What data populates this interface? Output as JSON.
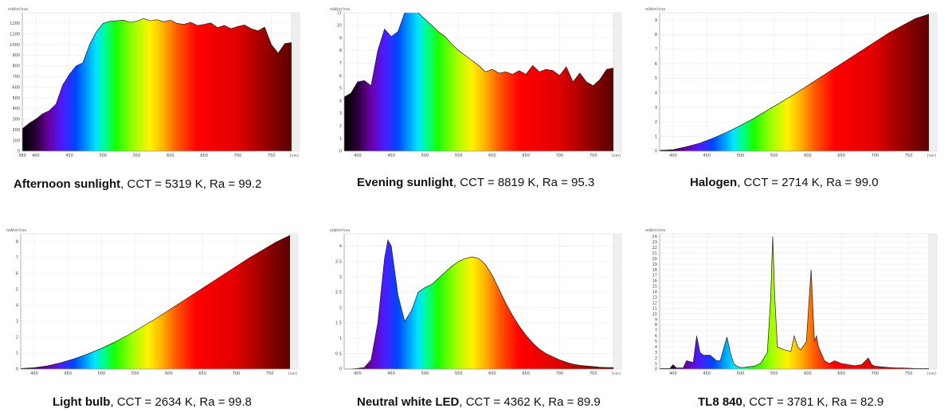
{
  "panels": [
    {
      "name": "Afternoon sunlight",
      "cct": "CCT = 5319 K",
      "ra": "Ra = 99.2",
      "unit": "mW/m²/nm",
      "x_unit": "[nm]",
      "chart_data": {
        "type": "area",
        "xlim": [
          380,
          780
        ],
        "ylim": [
          0,
          1300
        ],
        "xlabel": "[nm]",
        "x_ticks": [
          380,
          400,
          450,
          500,
          550,
          600,
          650,
          700,
          750
        ],
        "y_ticks": [
          0,
          100,
          200,
          300,
          400,
          500,
          600,
          700,
          800,
          900,
          1000,
          1100,
          1200
        ],
        "x": [
          380,
          390,
          400,
          410,
          420,
          430,
          440,
          450,
          460,
          470,
          480,
          490,
          500,
          510,
          520,
          530,
          540,
          550,
          560,
          570,
          580,
          590,
          600,
          610,
          620,
          630,
          640,
          650,
          660,
          670,
          680,
          690,
          700,
          710,
          720,
          730,
          740,
          750,
          760,
          770,
          780
        ],
        "y": [
          210,
          260,
          300,
          350,
          380,
          440,
          620,
          720,
          800,
          830,
          1000,
          1120,
          1200,
          1220,
          1225,
          1230,
          1210,
          1220,
          1245,
          1225,
          1235,
          1215,
          1230,
          1200,
          1190,
          1210,
          1180,
          1190,
          1205,
          1160,
          1180,
          1150,
          1170,
          1185,
          1150,
          1130,
          1165,
          1000,
          920,
          1010,
          1020
        ]
      }
    },
    {
      "name": "Evening sunlight",
      "cct": "CCT = 8819 K",
      "ra": "Ra = 95.3",
      "unit": "mW/m²/nm",
      "x_unit": "[nm]",
      "chart_data": {
        "type": "area",
        "xlim": [
          380,
          780
        ],
        "ylim": [
          0,
          11
        ],
        "xlabel": "[nm]",
        "x_ticks": [
          400,
          450,
          500,
          550,
          600,
          650,
          700,
          750
        ],
        "y_ticks": [
          0,
          1,
          2,
          3,
          4,
          5,
          6,
          7,
          8,
          9,
          10,
          11
        ],
        "x": [
          380,
          390,
          400,
          410,
          420,
          430,
          440,
          450,
          460,
          470,
          480,
          490,
          500,
          510,
          520,
          530,
          540,
          550,
          560,
          570,
          580,
          590,
          600,
          610,
          620,
          630,
          640,
          650,
          660,
          670,
          680,
          690,
          700,
          710,
          720,
          730,
          740,
          750,
          760,
          770,
          780
        ],
        "y": [
          4.3,
          4.6,
          5.5,
          5.6,
          5.2,
          8.0,
          9.7,
          9.1,
          9.5,
          11.0,
          11.3,
          11.0,
          10.5,
          10.0,
          9.5,
          9.1,
          8.5,
          8.0,
          7.6,
          7.2,
          6.8,
          6.3,
          6.5,
          6.2,
          6.3,
          6.1,
          6.4,
          6.1,
          6.8,
          6.3,
          6.5,
          6.4,
          6.0,
          6.7,
          5.5,
          6.2,
          5.5,
          5.2,
          5.7,
          6.5,
          6.6
        ]
      }
    },
    {
      "name": "Halogen",
      "cct": "CCT = 2714 K",
      "ra": "Ra = 99.0",
      "unit": "mW/m²/nm",
      "x_unit": "[nm]",
      "chart_data": {
        "type": "area",
        "xlim": [
          380,
          780
        ],
        "ylim": [
          0,
          9.5
        ],
        "xlabel": "[nm]",
        "x_ticks": [
          400,
          450,
          500,
          550,
          600,
          650,
          700,
          750
        ],
        "y_ticks": [
          0,
          1,
          2,
          3,
          4,
          5,
          6,
          7,
          8,
          9
        ],
        "x": [
          380,
          400,
          420,
          440,
          460,
          480,
          500,
          520,
          540,
          560,
          580,
          600,
          620,
          640,
          660,
          680,
          700,
          720,
          740,
          760,
          780
        ],
        "y": [
          0.05,
          0.1,
          0.3,
          0.55,
          0.9,
          1.3,
          1.75,
          2.25,
          2.8,
          3.35,
          3.9,
          4.5,
          5.1,
          5.7,
          6.3,
          6.9,
          7.5,
          8.1,
          8.6,
          9.1,
          9.4
        ]
      }
    },
    {
      "name": "Light bulb",
      "cct": "CCT = 2634 K",
      "ra": "Ra = 99.8",
      "unit": "mW/m²/nm",
      "x_unit": "[nm]",
      "chart_data": {
        "type": "area",
        "xlim": [
          380,
          780
        ],
        "ylim": [
          0,
          8.5
        ],
        "xlabel": "[nm]",
        "x_ticks": [
          400,
          450,
          500,
          550,
          600,
          650,
          700,
          750
        ],
        "y_ticks": [
          0,
          1,
          2,
          3,
          4,
          5,
          6,
          7,
          8
        ],
        "x": [
          380,
          400,
          420,
          440,
          460,
          480,
          500,
          520,
          540,
          560,
          580,
          600,
          620,
          640,
          660,
          680,
          700,
          720,
          740,
          760,
          780
        ],
        "y": [
          0.03,
          0.08,
          0.2,
          0.4,
          0.65,
          0.95,
          1.3,
          1.7,
          2.15,
          2.65,
          3.15,
          3.7,
          4.25,
          4.8,
          5.35,
          5.9,
          6.45,
          7.0,
          7.5,
          8.0,
          8.4
        ]
      }
    },
    {
      "name": "Neutral white LED",
      "cct": "CCT = 4362 K",
      "ra": "Ra = 89.9",
      "unit": "mW/m²/nm",
      "x_unit": "[nm]",
      "chart_data": {
        "type": "area",
        "xlim": [
          380,
          780
        ],
        "ylim": [
          0,
          4.4
        ],
        "xlabel": "[nm]",
        "x_ticks": [
          400,
          450,
          500,
          550,
          600,
          650,
          700,
          750
        ],
        "y_ticks": [
          0,
          0.5,
          1.0,
          1.5,
          2.0,
          2.5,
          3.0,
          3.5,
          4.0
        ],
        "x": [
          380,
          390,
          400,
          410,
          420,
          430,
          440,
          445,
          450,
          455,
          460,
          470,
          480,
          490,
          500,
          510,
          520,
          530,
          540,
          550,
          560,
          570,
          580,
          590,
          600,
          610,
          620,
          630,
          640,
          650,
          660,
          670,
          680,
          690,
          700,
          710,
          720,
          730,
          740,
          750,
          760,
          770,
          780
        ],
        "y": [
          0,
          0,
          0.02,
          0.05,
          0.3,
          1.5,
          3.6,
          4.2,
          4.0,
          3.2,
          2.4,
          1.55,
          1.9,
          2.5,
          2.65,
          2.75,
          2.95,
          3.15,
          3.35,
          3.5,
          3.6,
          3.65,
          3.6,
          3.4,
          3.05,
          2.6,
          2.15,
          1.75,
          1.4,
          1.1,
          0.85,
          0.65,
          0.5,
          0.4,
          0.3,
          0.22,
          0.16,
          0.12,
          0.1,
          0.08,
          0.06,
          0.05,
          0.05
        ]
      }
    },
    {
      "name": "TL8 840",
      "cct": "CCT = 3781 K",
      "ra": "Ra = 82.9",
      "unit": "mW/m²/nm",
      "x_unit": "[nm]",
      "chart_data": {
        "type": "area",
        "xlim": [
          380,
          780
        ],
        "ylim": [
          0,
          24.5
        ],
        "xlabel": "[nm]",
        "x_ticks": [
          400,
          450,
          500,
          550,
          600,
          650,
          700,
          750
        ],
        "y_ticks": [
          0,
          1,
          2,
          3,
          4,
          5,
          6,
          7,
          8,
          9,
          10,
          11,
          12,
          13,
          14,
          15,
          16,
          17,
          18,
          19,
          20,
          21,
          22,
          23,
          24
        ],
        "x": [
          380,
          395,
          400,
          405,
          415,
          420,
          430,
          435,
          440,
          445,
          455,
          460,
          465,
          470,
          480,
          485,
          490,
          495,
          500,
          505,
          510,
          520,
          530,
          540,
          545,
          548,
          551,
          555,
          565,
          575,
          580,
          585,
          590,
          598,
          605,
          610,
          613,
          616,
          625,
          632,
          640,
          650,
          660,
          670,
          680,
          690,
          695,
          700,
          710,
          720,
          730,
          740,
          760,
          780
        ],
        "y": [
          0.1,
          0.1,
          0.8,
          0.2,
          0.2,
          1.5,
          1.2,
          6.0,
          3.0,
          2.5,
          2.5,
          2.0,
          1.5,
          1.5,
          5.8,
          3.0,
          1.0,
          0.5,
          0.3,
          0.3,
          0.4,
          0.5,
          1.0,
          3.0,
          13.0,
          24.0,
          13.0,
          4.0,
          3.5,
          3.2,
          6.0,
          4.0,
          3.5,
          5.0,
          18.0,
          5.0,
          6.0,
          4.0,
          1.5,
          1.0,
          1.5,
          1.0,
          0.8,
          0.6,
          0.8,
          2.0,
          0.8,
          0.5,
          0.4,
          0.3,
          0.2,
          0.2,
          0.1,
          0.1
        ]
      }
    }
  ]
}
